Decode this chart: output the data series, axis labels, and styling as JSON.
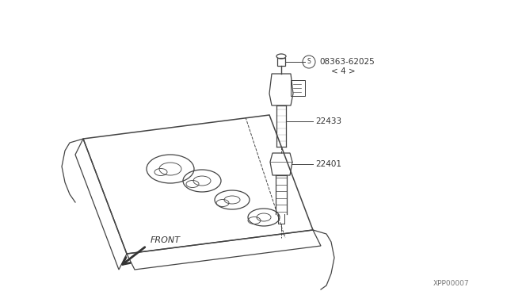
{
  "background_color": "#ffffff",
  "line_color": "#444444",
  "text_color": "#333333",
  "fig_width": 6.4,
  "fig_height": 3.72,
  "dpi": 100,
  "labels": {
    "part1": "08363-62025",
    "part1_sub": "〈4〉",
    "part2": "22433",
    "part3": "22401",
    "front": "FRONT",
    "part_num": "XPP00007"
  }
}
